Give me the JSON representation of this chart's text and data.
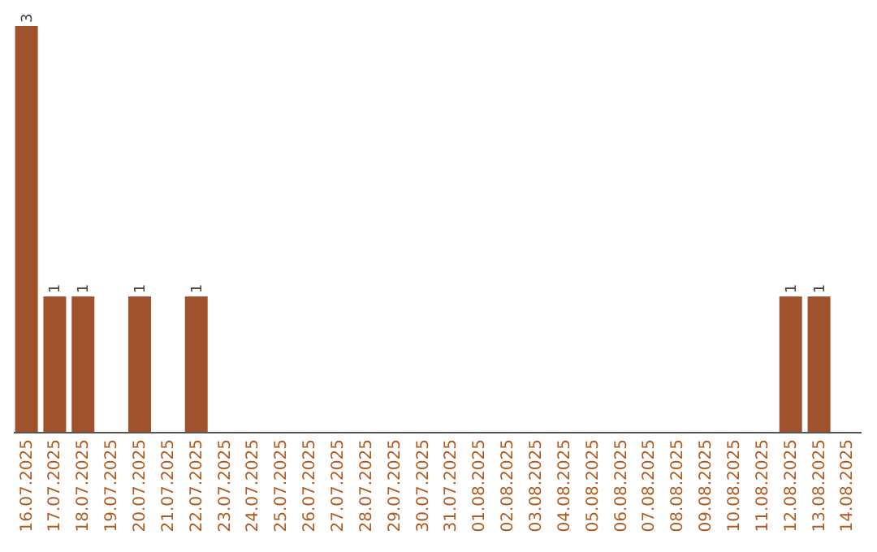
{
  "chart_data": {
    "type": "bar",
    "categories": [
      "16.07.2025",
      "17.07.2025",
      "18.07.2025",
      "19.07.2025",
      "20.07.2025",
      "21.07.2025",
      "22.07.2025",
      "23.07.2025",
      "24.07.2025",
      "25.07.2025",
      "26.07.2025",
      "27.07.2025",
      "28.07.2025",
      "29.07.2025",
      "30.07.2025",
      "31.07.2025",
      "01.08.2025",
      "02.08.2025",
      "03.08.2025",
      "04.08.2025",
      "05.08.2025",
      "06.08.2025",
      "07.08.2025",
      "08.08.2025",
      "09.08.2025",
      "10.08.2025",
      "11.08.2025",
      "12.08.2025",
      "13.08.2025",
      "14.08.2025"
    ],
    "values": [
      3,
      1,
      1,
      0,
      1,
      0,
      1,
      0,
      0,
      0,
      0,
      0,
      0,
      0,
      0,
      0,
      0,
      0,
      0,
      0,
      0,
      0,
      0,
      0,
      0,
      0,
      0,
      1,
      1,
      0
    ],
    "value_labels": [
      "3",
      "1",
      "1",
      null,
      "1",
      null,
      "1",
      null,
      null,
      null,
      null,
      null,
      null,
      null,
      null,
      null,
      null,
      null,
      null,
      null,
      null,
      null,
      null,
      null,
      null,
      null,
      null,
      "1",
      "1",
      null
    ],
    "color": "#a0522d"
  }
}
